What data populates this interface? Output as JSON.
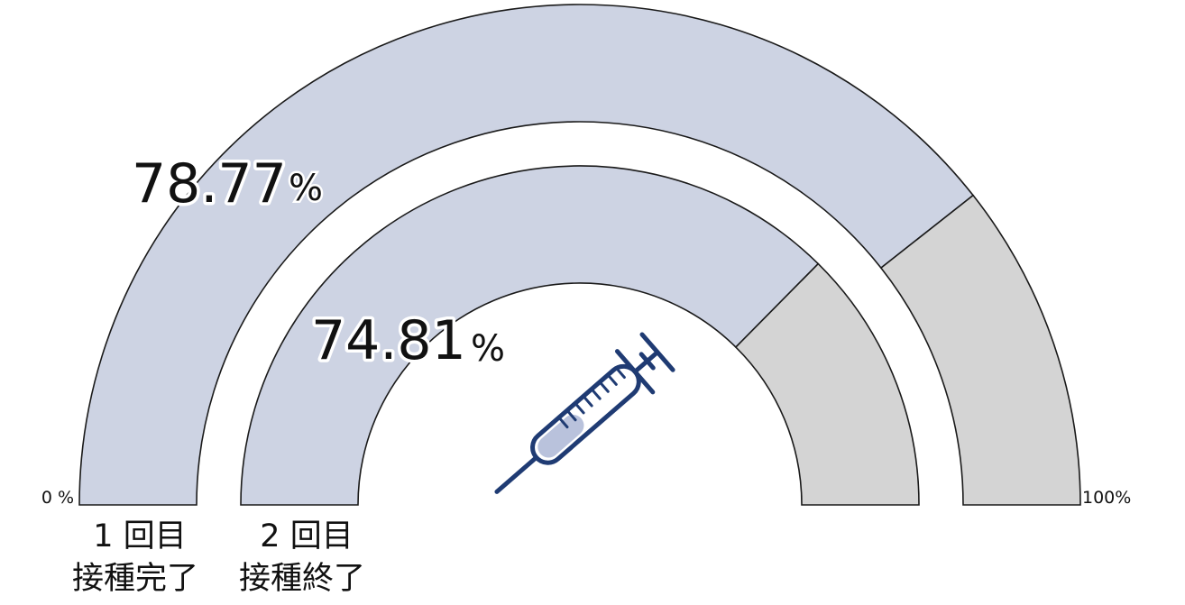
{
  "chart_data": {
    "type": "gauge",
    "min_label": "0 %",
    "max_label": "100%",
    "range": [
      0,
      100
    ],
    "series": [
      {
        "label_line1": "1 回目",
        "label_line2": "接種完了",
        "value": 78.77,
        "value_text": "78.77",
        "unit": "%"
      },
      {
        "label_line1": "2 回目",
        "label_line2": "接種終了",
        "value": 74.81,
        "value_text": "74.81",
        "unit": "%"
      }
    ],
    "colors": {
      "filled": "#cdd3e3",
      "remaining": "#d4d4d4",
      "outline": "#1a1a1a",
      "icon": "#1f3b73"
    },
    "icon": "syringe-icon"
  }
}
